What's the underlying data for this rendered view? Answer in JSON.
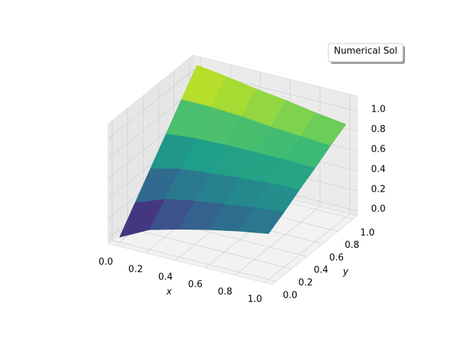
{
  "chart_data": {
    "type": "surface",
    "cmap": "viridis",
    "xlabel": "x",
    "ylabel": "y",
    "legend": {
      "label": "Numerical Sol",
      "loc": "upper right"
    },
    "x": [
      0,
      0.2,
      0.4,
      0.6,
      0.8,
      1
    ],
    "y": [
      0,
      0.2,
      0.4,
      0.6,
      0.8,
      1
    ],
    "z": [
      [
        0,
        0.15,
        0.23,
        0.3,
        0.36,
        0.41
      ],
      [
        0.22,
        0.33,
        0.39,
        0.43,
        0.47,
        0.5
      ],
      [
        0.44,
        0.51,
        0.54,
        0.57,
        0.59,
        0.6
      ],
      [
        0.66,
        0.69,
        0.7,
        0.7,
        0.7,
        0.69
      ],
      [
        0.88,
        0.88,
        0.86,
        0.83,
        0.81,
        0.79
      ],
      [
        1.1,
        1.06,
        1.01,
        0.97,
        0.92,
        0.88
      ]
    ],
    "xlim": [
      -0.05,
      1.05
    ],
    "ylim": [
      -0.05,
      1.05
    ],
    "zlim": [
      -0.05,
      1.15
    ],
    "xticks": [
      {
        "value": 0,
        "label": "0.0"
      },
      0.2,
      0.4,
      0.6,
      0.8,
      {
        "value": 1,
        "label": "1.0"
      }
    ],
    "yticks": [
      {
        "value": 0,
        "label": "0.0"
      },
      0.2,
      0.4,
      0.6,
      0.8,
      {
        "value": 1,
        "label": "1.0"
      }
    ],
    "zticks": [
      {
        "value": 0,
        "label": "0.0"
      },
      0.2,
      0.4,
      0.6,
      0.8,
      {
        "value": 1,
        "label": "1.0"
      }
    ],
    "grid": true
  }
}
